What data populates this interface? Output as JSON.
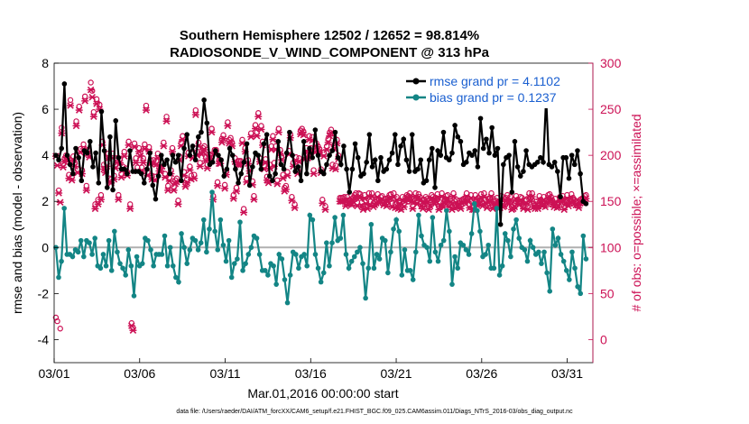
{
  "chart_data": {
    "type": "line",
    "title_line1": "Southern Hemisphere 12502 / 12652 = 98.814%",
    "title_line2": "RADIOSONDE_V_WIND_COMPONENT @ 313 hPa",
    "xlabel": "Mar.01,2016 00:00:00 start",
    "ylabel_left": "rmse and bias (model - observation)",
    "ylabel_right": "# of obs: o=possible; ×=assimilated",
    "ylim_left": [
      -5,
      8
    ],
    "ylim_right": [
      -25,
      300
    ],
    "yticks_left": [
      "-4",
      "-2",
      "0",
      "2",
      "4",
      "6",
      "8"
    ],
    "yticks_right": [
      "0",
      "50",
      "100",
      "150",
      "200",
      "250",
      "300"
    ],
    "x_ticks": [
      "03/01",
      "03/06",
      "03/11",
      "03/16",
      "03/21",
      "03/26",
      "03/31"
    ],
    "x_range_days": [
      0,
      31.5
    ],
    "legend_location": "top-right",
    "colors": {
      "rmse": "#000000",
      "bias": "#138585",
      "obs": "#cc1155",
      "axis_right": "#cc1155",
      "zero_line": "#b0b0b0",
      "legend_text": "#1a5fd0"
    },
    "series": [
      {
        "name": "rmse grand pr = 4.1102",
        "values": [
          4.0,
          3.8,
          4.3,
          7.1,
          4.0,
          3.6,
          3.2,
          4.3,
          3.9,
          2.9,
          4.2,
          4.1,
          4.6,
          3.5,
          4.1,
          2.8,
          5.9,
          4.2,
          2.6,
          4.8,
          2.5,
          5.5,
          3.9,
          3.4,
          3.4,
          3.2,
          4.2,
          3.3,
          3.3,
          3.3,
          3.2,
          2.8,
          3.4,
          4.1,
          2.7,
          2.1,
          3.1,
          4.0,
          3.6,
          3.8,
          3.2,
          4.0,
          3.7,
          4.0,
          2.9,
          4.3,
          4.9,
          4.0,
          4.4,
          3.8,
          4.8,
          5.0,
          6.4,
          5.4,
          3.6,
          3.7,
          4.2,
          4.0,
          3.8,
          3.1,
          3.4,
          4.3,
          4.0,
          3.4,
          2.8,
          3.2,
          3.7,
          4.5,
          2.7,
          3.5,
          4.1,
          4.0,
          3.4,
          4.5,
          4.9,
          3.1,
          2.9,
          3.2,
          4.6,
          3.6,
          3.4,
          4.1,
          5.0,
          4.0,
          3.3,
          3.5,
          2.9,
          4.6,
          3.2,
          4.3,
          3.9,
          5.1,
          4.0,
          3.3,
          3.2,
          3.6,
          4.0,
          4.2,
          5.0,
          3.9,
          3.6,
          4.4,
          3.4,
          2.4,
          3.4,
          4.5,
          3.9,
          3.1,
          3.2,
          3.7,
          4.9,
          3.5,
          3.8,
          2.9,
          3.9,
          3.3,
          3.4,
          3.8,
          4.1,
          4.9,
          3.6,
          4.4,
          4.7,
          3.8,
          3.3,
          4.9,
          3.3,
          3.4,
          3.8,
          2.8,
          2.9,
          3.8,
          4.3,
          2.6,
          4.2,
          4.0,
          5.0,
          3.9,
          3.8,
          4.1,
          5.3,
          4.8,
          4.6,
          3.6,
          3.7,
          4.1,
          4.0,
          4.2,
          3.5,
          5.6,
          4.3,
          4.7,
          4.1,
          5.2,
          4.0,
          4.3,
          1.0,
          3.6,
          3.9,
          4.0,
          2.4,
          4.6,
          3.5,
          3.1,
          3.3,
          4.2,
          3.6,
          3.5,
          3.6,
          3.7,
          3.9,
          3.7,
          6.5,
          3.6,
          3.5,
          3.7,
          3.3,
          2.2,
          3.9,
          3.9,
          3.0,
          4.0,
          3.6,
          4.2,
          3.2,
          2.0,
          1.9
        ]
      },
      {
        "name": "bias grand pr = 0.1237",
        "values": [
          0.0,
          -1.3,
          -0.6,
          1.7,
          -0.3,
          -0.3,
          -0.4,
          -0.1,
          -0.2,
          0.3,
          -0.4,
          0.3,
          0.2,
          -0.3,
          0.4,
          -0.8,
          -0.9,
          -0.3,
          -0.8,
          0.3,
          -1.0,
          0.7,
          -0.2,
          -0.7,
          -0.9,
          -1.2,
          -0.1,
          -0.8,
          -2.1,
          -0.4,
          -0.8,
          -0.7,
          0.4,
          0.3,
          -0.1,
          -0.8,
          -0.3,
          -0.3,
          -0.3,
          0.5,
          -0.8,
          0.0,
          -0.8,
          -1.3,
          -1.5,
          0.6,
          0.0,
          -0.7,
          -0.1,
          0.4,
          0.3,
          -0.1,
          0.2,
          1.2,
          -0.2,
          0.8,
          2.4,
          0.7,
          -0.1,
          1.2,
          0.1,
          -0.6,
          0.3,
          -1.3,
          -0.7,
          -0.5,
          1.1,
          -1.0,
          -0.7,
          -0.3,
          0.0,
          0.5,
          0.4,
          -0.3,
          -1.0,
          -1.0,
          -1.2,
          -0.7,
          -0.8,
          -1.6,
          -0.3,
          -0.5,
          -1.4,
          -2.4,
          -1.2,
          -0.2,
          -0.3,
          -0.9,
          -0.4,
          -0.3,
          -0.8,
          1.4,
          1.2,
          -0.3,
          -0.9,
          -1.5,
          -1.1,
          0.2,
          -0.8,
          0.2,
          1.3,
          0.3,
          0.4,
          1.4,
          -0.3,
          -0.9,
          -0.6,
          -0.4,
          -0.2,
          0.0,
          -0.7,
          -2.2,
          -0.9,
          1.0,
          -0.9,
          -0.3,
          -0.5,
          0.4,
          0.3,
          -1.1,
          -0.2,
          0.8,
          1.2,
          0.7,
          -1.2,
          -0.1,
          -1.0,
          -1.0,
          -1.4,
          -0.2,
          1.4,
          0.5,
          0.1,
          0.0,
          -0.6,
          1.3,
          -0.2,
          -0.6,
          0.1,
          0.3,
          1.6,
          0.7,
          -1.6,
          -0.4,
          -0.9,
          0.2,
          0.1,
          -0.1,
          -0.3,
          0.6,
          1.9,
          1.6,
          0.7,
          -0.4,
          -0.3,
          0.1,
          -0.9,
          -0.9,
          1.7,
          -1.2,
          -0.8,
          0.6,
          0.3,
          -0.4,
          0.8,
          1.2,
          0.4,
          0.0,
          -0.1,
          -0.6,
          0.3,
          0.0,
          -0.3,
          -0.2,
          -0.7,
          -0.2,
          -1.1,
          -1.9,
          0.8,
          0.1,
          0.4,
          -0.3,
          -0.6,
          -1.0,
          -1.4,
          -0.2,
          -0.9,
          -1.7,
          -2.0,
          0.5,
          -0.5
        ]
      }
    ],
    "obs_possible": [
      22,
      18,
      160,
      10,
      228,
      189,
      195,
      198,
      196,
      177,
      258,
      175,
      197,
      190,
      235,
      183,
      251,
      205,
      182,
      210,
      262,
      165,
      204,
      200,
      277,
      268,
      245,
      145,
      259,
      150,
      253,
      155,
      213,
      188,
      183,
      190,
      200,
      173,
      172,
      200,
      176,
      188,
      195,
      155,
      194,
      178,
      186,
      202,
      184,
      180,
      213,
      145,
      16,
      11,
      211,
      195,
      185,
      206,
      201,
      185,
      195,
      210,
      252,
      180,
      207,
      193,
      176,
      193,
      175,
      192,
      200,
      185,
      185,
      190,
      212,
      178,
      240,
      165,
      174,
      182,
      206,
      164,
      171,
      173,
      149,
      197,
      212,
      219,
      180,
      168,
      172,
      201,
      186,
      176,
      200,
      177,
      247,
      202,
      212,
      190,
      203,
      206,
      208,
      196,
      188,
      199,
      199,
      227,
      154,
      204,
      204,
      169,
      193,
      193,
      216,
      220,
      166,
      181,
      234,
      215,
      217,
      212,
      155,
      195,
      163,
      192,
      192,
      192,
      215,
      140,
      206,
      173,
      193,
      185,
      222,
      170,
      154,
      231,
      223,
      244,
      195,
      230,
      213,
      187,
      194,
      175,
      172,
      188,
      208,
      219,
      190,
      208,
      171,
      227,
      204,
      197,
      177,
      163,
      165,
      180,
      203,
      221,
      153,
      190,
      145,
      196,
      182,
      195,
      225,
      227,
      224,
      198,
      206,
      199,
      219,
      206,
      218,
      182,
      205,
      211,
      208,
      205,
      183,
      150,
      201,
      143,
      208,
      216,
      223,
      226,
      188,
      209,
      187,
      215,
      198,
      152,
      152,
      152,
      153,
      147,
      153,
      149,
      150,
      148,
      152,
      155,
      157,
      147,
      157,
      156,
      147,
      143,
      155,
      149,
      144,
      157,
      148,
      157,
      146,
      148,
      150,
      156,
      150,
      153,
      154,
      148,
      151,
      147,
      152,
      155,
      156,
      146,
      157,
      145,
      153,
      144,
      148,
      143,
      153,
      146,
      152,
      155,
      154,
      157,
      152,
      144,
      151,
      157,
      149,
      156,
      153,
      147,
      144,
      150,
      153,
      151,
      143,
      147,
      155,
      153,
      149,
      152,
      156,
      143,
      147,
      157,
      146,
      150,
      154,
      155,
      146,
      151,
      143,
      157,
      145,
      150,
      146,
      149,
      144,
      150,
      151,
      152,
      157,
      152,
      145,
      155,
      143,
      143,
      155,
      148,
      152,
      149,
      156,
      147,
      157,
      150,
      145,
      151,
      152,
      157,
      144,
      148,
      149,
      152,
      148,
      145,
      154,
      146,
      147,
      152,
      155,
      149,
      153,
      143,
      144,
      146,
      154,
      150,
      148,
      153,
      152,
      144,
      149,
      150,
      143,
      157,
      152,
      157,
      146,
      144,
      148,
      144,
      154,
      150,
      147,
      153,
      146,
      150,
      155,
      156,
      153,
      149,
      146,
      151,
      145,
      146,
      153,
      151,
      154,
      143,
      149,
      155,
      147,
      150,
      156,
      152,
      150,
      148,
      148,
      145,
      150,
      151,
      152,
      154,
      155
    ],
    "obs_assimilated": [
      200,
      190,
      160,
      150,
      225,
      188,
      194,
      196,
      195,
      176,
      255,
      174,
      196,
      189,
      233,
      182,
      250,
      204,
      181,
      208,
      260,
      163,
      203,
      199,
      272,
      264,
      243,
      143,
      257,
      148,
      251,
      153,
      212,
      186,
      182,
      189,
      198,
      172,
      171,
      198,
      175,
      187,
      193,
      153,
      193,
      177,
      185,
      200,
      183,
      179,
      212,
      143,
      16,
      11,
      210,
      193,
      184,
      205,
      200,
      184,
      193,
      208,
      250,
      179,
      205,
      192,
      175,
      192,
      174,
      191,
      198,
      184,
      184,
      189,
      211,
      177,
      238,
      163,
      173,
      181,
      205,
      163,
      170,
      172,
      148,
      196,
      211,
      218,
      179,
      167,
      171,
      200,
      185,
      175,
      198,
      176,
      245,
      201,
      211,
      189,
      202,
      205,
      207,
      195,
      187,
      198,
      198,
      226,
      153,
      203,
      203,
      168,
      192,
      192,
      215,
      219,
      165,
      180,
      233,
      214,
      216,
      211,
      154,
      194,
      162,
      191,
      191,
      191,
      214,
      139,
      205,
      172,
      192,
      184,
      221,
      169,
      153,
      230,
      222,
      243,
      194,
      229,
      212,
      186,
      193,
      174,
      171,
      187,
      207,
      218,
      189,
      207,
      170,
      226,
      203,
      196,
      176,
      162,
      164,
      179,
      202,
      220,
      152,
      189,
      144,
      195,
      181,
      194,
      224,
      226,
      223,
      197,
      205,
      198,
      218,
      205,
      217,
      181,
      204,
      210,
      207,
      204,
      182,
      149,
      200,
      142,
      207,
      215,
      222,
      225,
      187,
      208,
      186,
      214,
      197,
      151,
      151,
      151,
      152,
      146,
      152,
      148,
      149,
      147,
      151,
      154,
      156,
      146,
      156,
      155,
      146,
      142,
      154,
      148,
      143,
      156,
      147,
      156,
      145,
      147,
      149,
      155,
      149,
      152,
      153,
      147,
      150,
      146,
      151,
      154,
      155,
      145,
      156,
      144,
      152,
      143,
      147,
      142,
      152,
      145,
      151,
      154,
      153,
      156,
      151,
      143,
      150,
      156,
      148,
      155,
      152,
      146,
      143,
      149,
      152,
      150,
      142,
      146,
      154,
      152,
      148,
      151,
      155,
      142,
      146,
      156,
      145,
      149,
      153,
      154,
      145,
      150,
      142,
      156,
      144,
      149,
      145,
      148,
      143,
      149,
      150,
      151,
      156,
      151,
      144,
      154,
      142,
      142,
      154,
      147,
      151,
      148,
      155,
      146,
      156,
      149,
      144,
      150,
      151,
      156,
      143,
      147,
      148,
      151,
      147,
      144,
      153,
      145,
      146,
      151,
      154,
      148,
      152,
      142,
      143,
      145,
      153,
      149,
      147,
      152,
      151,
      143,
      148,
      149,
      142,
      156,
      151,
      156,
      145,
      143,
      147,
      143,
      153,
      149,
      146,
      152,
      145,
      149,
      154,
      155,
      152,
      148,
      145,
      150,
      144,
      145,
      152,
      150,
      153,
      142,
      148,
      154,
      146,
      149,
      155,
      151,
      149,
      147,
      147,
      144,
      149,
      150,
      151,
      153,
      154
    ],
    "footer": "data file: /Users/raeder/DAI/ATM_forcXX/CAM6_setup/f.e21.FHIST_BGC.f09_025.CAM6assim.011/Diags_NTrS_2016-03/obs_diag_output.nc"
  }
}
